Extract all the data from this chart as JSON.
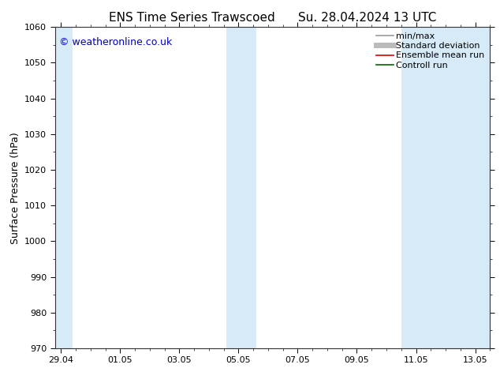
{
  "title_left": "ENS Time Series Trawscoed",
  "title_right": "Su. 28.04.2024 13 UTC",
  "ylabel": "Surface Pressure (hPa)",
  "ylim": [
    970,
    1060
  ],
  "yticks": [
    970,
    980,
    990,
    1000,
    1010,
    1020,
    1030,
    1040,
    1050,
    1060
  ],
  "xtick_labels": [
    "29.04",
    "01.05",
    "03.05",
    "05.05",
    "07.05",
    "09.05",
    "11.05",
    "13.05"
  ],
  "xtick_positions": [
    0,
    2,
    4,
    6,
    8,
    10,
    12,
    14
  ],
  "xlim": [
    -0.2,
    14.5
  ],
  "background_color": "#ffffff",
  "plot_bg_color": "#ffffff",
  "shaded_bands": [
    {
      "x_start": -0.2,
      "x_end": 0.4,
      "color": "#d6eaf8"
    },
    {
      "x_start": 5.6,
      "x_end": 6.1,
      "color": "#d6eaf8"
    },
    {
      "x_start": 6.1,
      "x_end": 6.6,
      "color": "#d6eaf8"
    },
    {
      "x_start": 11.5,
      "x_end": 12.0,
      "color": "#d6eaf8"
    },
    {
      "x_start": 12.0,
      "x_end": 14.5,
      "color": "#d6eaf8"
    }
  ],
  "watermark_text": "© weatheronline.co.uk",
  "watermark_color": "#0000bb",
  "watermark_fontsize": 9,
  "legend_entries": [
    {
      "label": "min/max",
      "color": "#999999",
      "lw": 1.2,
      "linestyle": "-"
    },
    {
      "label": "Standard deviation",
      "color": "#bbbbbb",
      "lw": 5,
      "linestyle": "-"
    },
    {
      "label": "Ensemble mean run",
      "color": "#dd0000",
      "lw": 1.2,
      "linestyle": "-"
    },
    {
      "label": "Controll run",
      "color": "#006600",
      "lw": 1.2,
      "linestyle": "-"
    }
  ],
  "title_fontsize": 11,
  "axis_label_fontsize": 9,
  "tick_fontsize": 8,
  "legend_fontsize": 8
}
